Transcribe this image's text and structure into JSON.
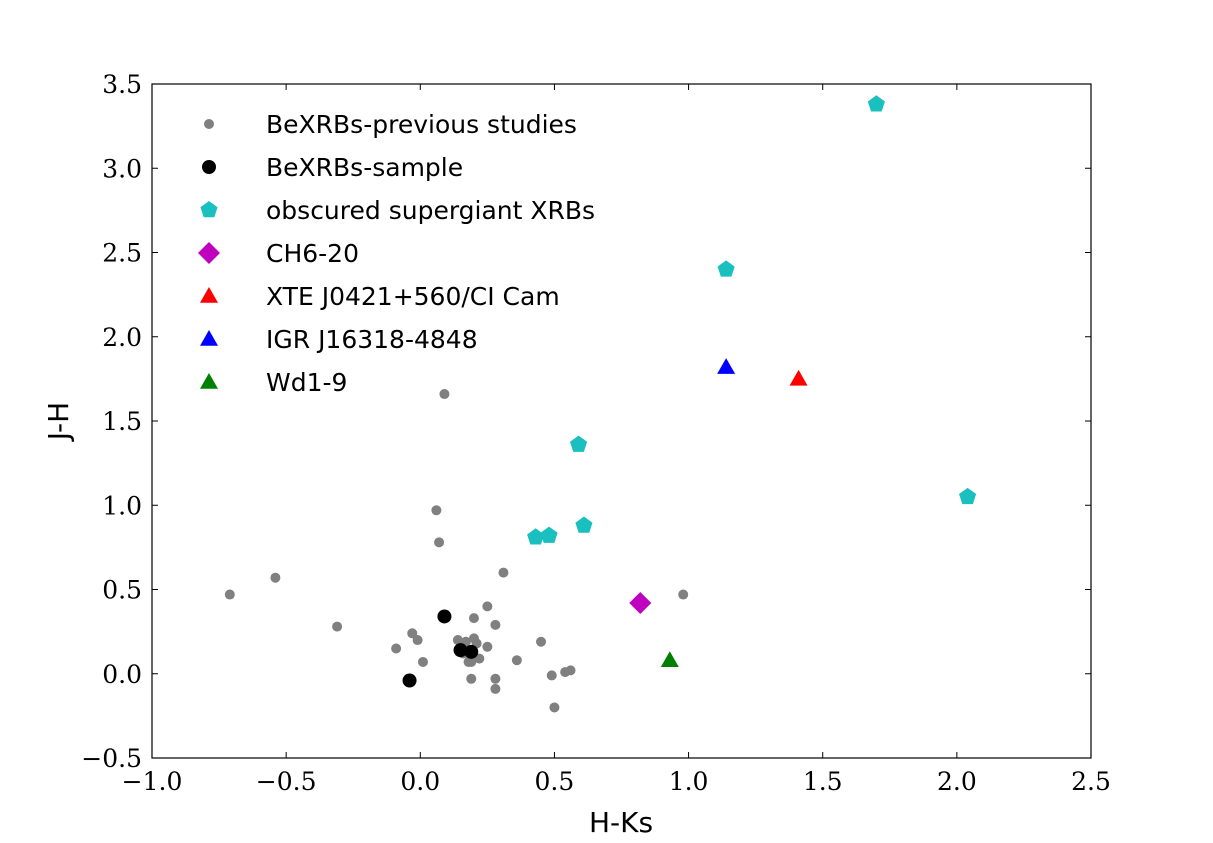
{
  "chart_data": {
    "type": "scatter",
    "xlabel": "H-Ks",
    "ylabel": "J-H",
    "xlim": [
      -1.0,
      2.5
    ],
    "ylim": [
      -0.5,
      3.5
    ],
    "xticks": [
      -1.0,
      -0.5,
      0.0,
      0.5,
      1.0,
      1.5,
      2.0,
      2.5
    ],
    "yticks": [
      -0.5,
      0.0,
      0.5,
      1.0,
      1.5,
      2.0,
      2.5,
      3.0,
      3.5
    ],
    "xtick_labels": [
      "−1.0",
      "−0.5",
      "0.0",
      "0.5",
      "1.0",
      "1.5",
      "2.0",
      "2.5"
    ],
    "ytick_labels": [
      "−0.5",
      "0.0",
      "0.5",
      "1.0",
      "1.5",
      "2.0",
      "2.5",
      "3.0",
      "3.5"
    ],
    "grid": false,
    "legend_position": "top-left",
    "series": [
      {
        "name": "BeXRBs-previous studies",
        "marker": "circle-small",
        "color": "#808080",
        "x": [
          -0.71,
          -0.54,
          -0.31,
          -0.09,
          -0.03,
          -0.01,
          0.01,
          0.06,
          0.07,
          0.09,
          0.14,
          0.16,
          0.17,
          0.18,
          0.19,
          0.19,
          0.2,
          0.2,
          0.21,
          0.22,
          0.25,
          0.25,
          0.28,
          0.28,
          0.28,
          0.31,
          0.36,
          0.45,
          0.49,
          0.5,
          0.54,
          0.56,
          0.98
        ],
        "y": [
          0.47,
          0.57,
          0.28,
          0.15,
          0.24,
          0.2,
          0.07,
          0.97,
          0.78,
          1.66,
          0.2,
          0.12,
          0.19,
          0.07,
          0.07,
          -0.03,
          0.33,
          0.21,
          0.18,
          0.09,
          0.4,
          0.16,
          0.29,
          -0.03,
          -0.09,
          0.6,
          0.08,
          0.19,
          -0.01,
          -0.2,
          0.01,
          0.02,
          0.47
        ]
      },
      {
        "name": "BeXRBs-sample",
        "marker": "circle",
        "color": "#000000",
        "x": [
          -0.04,
          0.09,
          0.15,
          0.19
        ],
        "y": [
          -0.04,
          0.34,
          0.14,
          0.13
        ]
      },
      {
        "name": "obscured supergiant XRBs",
        "marker": "pentagon",
        "color": "#1abfbf",
        "x": [
          0.43,
          0.48,
          0.59,
          0.61,
          1.14,
          1.7,
          2.04
        ],
        "y": [
          0.81,
          0.82,
          1.36,
          0.88,
          2.4,
          3.38,
          1.05
        ]
      },
      {
        "name": "CH6-20",
        "marker": "diamond",
        "color": "#bf00bf",
        "x": [
          0.82
        ],
        "y": [
          0.42
        ]
      },
      {
        "name": "XTE J0421+560/CI Cam",
        "marker": "triangle",
        "color": "#ff0000",
        "x": [
          1.41
        ],
        "y": [
          1.75
        ]
      },
      {
        "name": "IGR J16318-4848",
        "marker": "triangle",
        "color": "#0000ff",
        "x": [
          1.14
        ],
        "y": [
          1.82
        ]
      },
      {
        "name": "Wd1-9",
        "marker": "triangle",
        "color": "#008000",
        "x": [
          0.93
        ],
        "y": [
          0.08
        ]
      }
    ]
  }
}
